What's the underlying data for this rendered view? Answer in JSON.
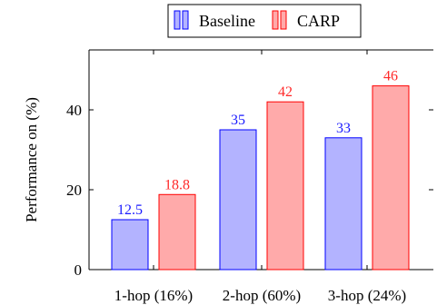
{
  "chart_data": {
    "type": "bar",
    "categories": [
      "1-hop (16%)",
      "2-hop (60%)",
      "3-hop (24%)"
    ],
    "series": [
      {
        "name": "Baseline",
        "values": [
          12.5,
          35,
          33
        ],
        "color": "#b3b3ff",
        "stroke": "#0000ff",
        "label_color": "#1a1aff"
      },
      {
        "name": "CARP",
        "values": [
          18.8,
          42,
          46
        ],
        "color": "#ffaaaa",
        "stroke": "#ff0000",
        "label_color": "#ff2a2a"
      }
    ],
    "value_labels": [
      [
        "12.5",
        "35",
        "33"
      ],
      [
        "18.8",
        "42",
        "46"
      ]
    ],
    "yticks": [
      "0",
      "20",
      "40"
    ],
    "ylabel": "Performance on (%)",
    "xlabel": "",
    "ylim": [
      0,
      55
    ],
    "legend_position": "top-center",
    "grid": false
  }
}
